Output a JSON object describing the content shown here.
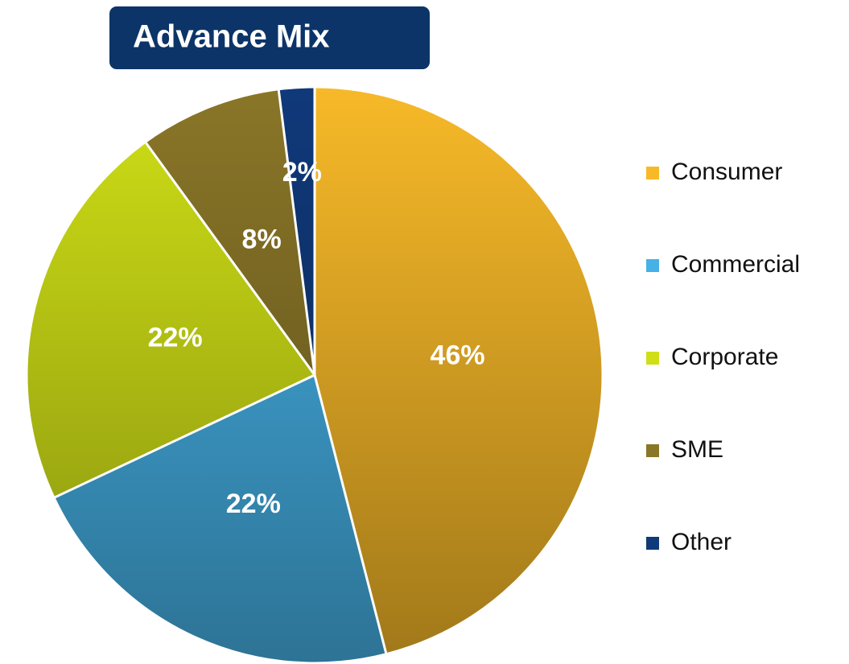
{
  "chart_data": {
    "type": "pie",
    "title": "Advance Mix",
    "categories": [
      "Consumer",
      "Commercial",
      "Corporate",
      "SME",
      "Other"
    ],
    "values": [
      46,
      22,
      22,
      8,
      2
    ],
    "value_labels": [
      "46%",
      "22%",
      "22%",
      "8%",
      "2%"
    ],
    "colors": [
      "#f7b928",
      "#45b1e6",
      "#cfdf16",
      "#8a7628",
      "#10397a"
    ],
    "legend": "right"
  }
}
